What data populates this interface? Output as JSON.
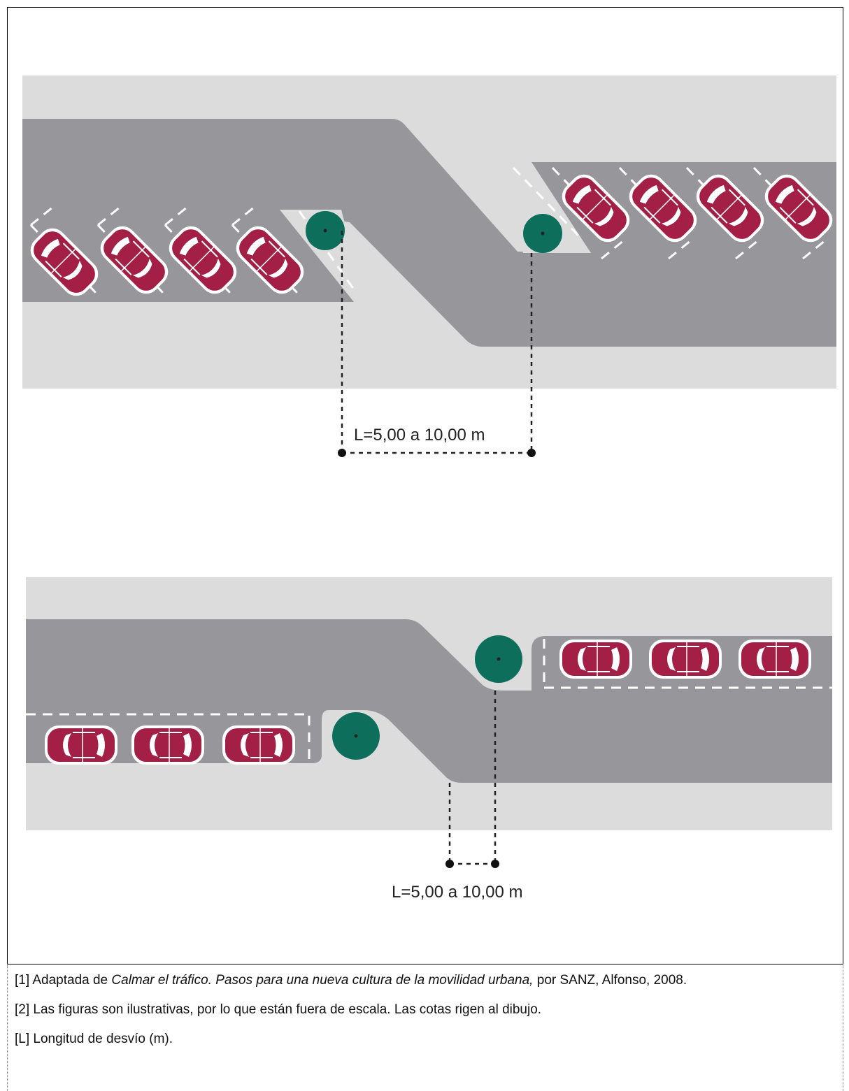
{
  "figure": {
    "top_diagram": {
      "dimension_label": "L=5,00 a 10,00 m",
      "cars": 8
    },
    "bottom_diagram": {
      "dimension_label": "L=5,00 a 10,00 m",
      "cars": 6
    }
  },
  "colors": {
    "sidewalk": "#dcdcdc",
    "road": "#97979b",
    "car_body": "#a31f45",
    "tree": "#0e6e5c",
    "frame": "#000000"
  },
  "notes": [
    {
      "ref": "[1]",
      "text_before": "Adaptada de ",
      "italic": "Calmar el tráfico. Pasos para una nueva cultura de la movilidad urbana,",
      "text_after": " por SANZ, Alfonso, 2008."
    },
    {
      "ref": "[2]",
      "text_before": "Las figuras son ilustrativas, por lo que están fuera de escala. Las cotas rigen al dibujo.",
      "italic": "",
      "text_after": ""
    },
    {
      "ref": "[L]",
      "text_before": "Longitud de desvío (m).",
      "italic": "",
      "text_after": ""
    }
  ]
}
